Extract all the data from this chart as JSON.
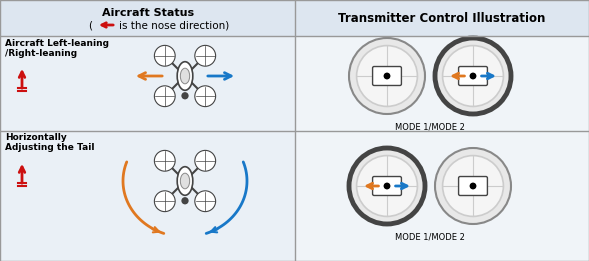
{
  "bg_color": "#eaf0f6",
  "header_bg": "#dde6f0",
  "cell_bg": "#eaf0f6",
  "border_color": "#999999",
  "title_left_line1": "Aircraft Status",
  "title_left_line2": "is the nose direction)",
  "title_right": "Transmitter Control Illustration",
  "row1_label": "Aircraft Left-leaning\n/Right-leaning",
  "row2_label": "Horizontally\nAdjusting the Tail",
  "mode_label": "MODE 1/MODE 2",
  "orange_color": "#E07820",
  "blue_color": "#1878C8",
  "red_color": "#CC1010",
  "gray_dark": "#444444",
  "gray_mid": "#888888",
  "gray_light": "#cccccc",
  "gray_ring": "#777777",
  "white": "#ffffff",
  "fig_w": 5.89,
  "fig_h": 2.61,
  "dpi": 100
}
